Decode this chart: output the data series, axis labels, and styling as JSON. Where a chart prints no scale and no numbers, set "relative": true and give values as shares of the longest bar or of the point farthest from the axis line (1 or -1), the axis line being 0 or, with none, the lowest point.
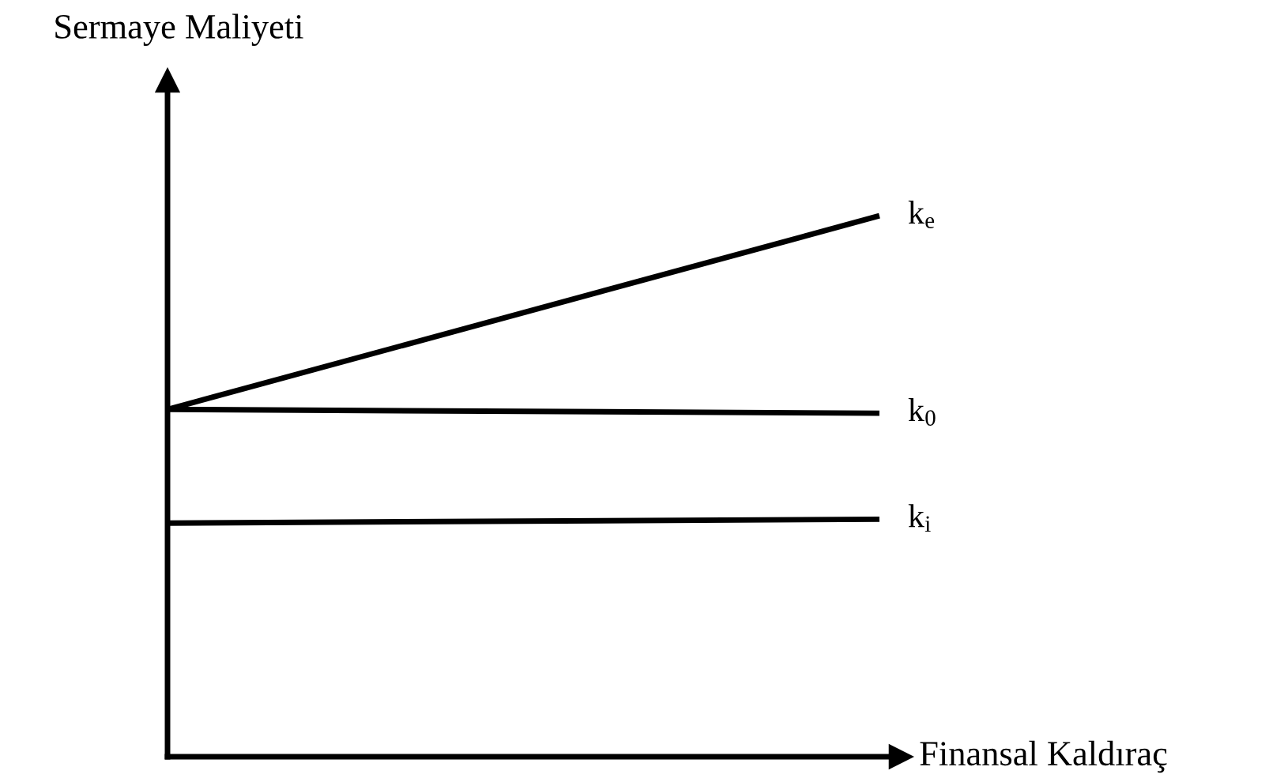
{
  "chart_data": {
    "type": "line",
    "relative": true,
    "xlabel": "Finansal Kaldıraç",
    "ylabel": "Sermaye Maliyeti",
    "categories": [
      null,
      null
    ],
    "series": [
      {
        "name": "k$_{e}$",
        "color": "#000000",
        "values": [
          0.642,
          1
        ]
      },
      {
        "name": "k$_{0}$",
        "color": "#000000",
        "values": [
          0.642,
          0.635
        ]
      },
      {
        "name": "k$_{i}$",
        "color": "#000000",
        "values": [
          0.432,
          0.439
        ]
      }
    ]
  }
}
